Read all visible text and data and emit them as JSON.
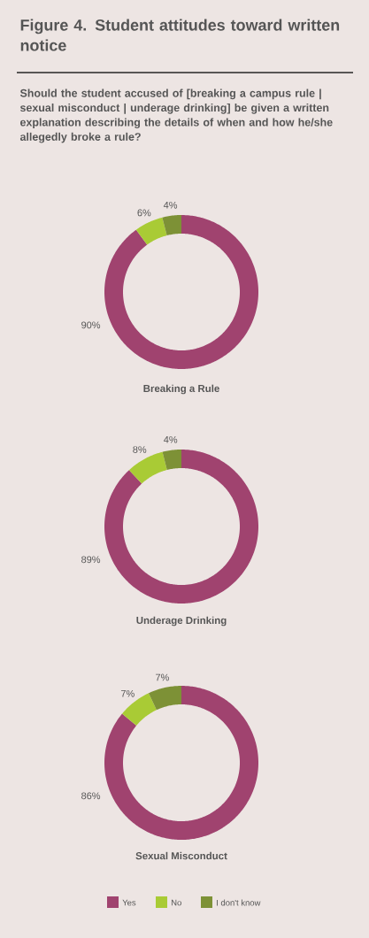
{
  "chart_data": [
    {
      "type": "donut",
      "title": "Figure 4. Student attitudes toward written notice",
      "subtitle": "Should the student accused of [breaking a campus rule | sexual misconduct | underage drinking] be given a written explanation describing the details of when and how he/she allegedly broke a rule?",
      "xlabel": "Breaking a Rule",
      "categories": [
        null,
        null,
        null
      ],
      "values": [
        90,
        6,
        4
      ],
      "value_labels": [
        "90%",
        "6%",
        "4%"
      ],
      "colors": [
        "#a0436f",
        "#a9cb35",
        "#7d9136"
      ]
    },
    {
      "type": "donut",
      "xlabel": "Underage Drinking",
      "categories": [
        null,
        null,
        null
      ],
      "values": [
        89,
        8,
        4
      ],
      "value_labels": [
        "89%",
        "8%",
        "4%"
      ],
      "colors": [
        "#a0436f",
        "#a9cb35",
        "#7d9136"
      ]
    },
    {
      "type": "donut",
      "xlabel": "Sexual Misconduct",
      "categories": [
        "Yes",
        "No",
        "I don't know"
      ],
      "values": [
        86,
        7,
        7
      ],
      "value_labels": [
        "86%",
        "7%",
        "7%"
      ],
      "colors": [
        "#a0436f",
        "#a9cb35",
        "#7d9136"
      ],
      "legend": "bottom"
    }
  ]
}
